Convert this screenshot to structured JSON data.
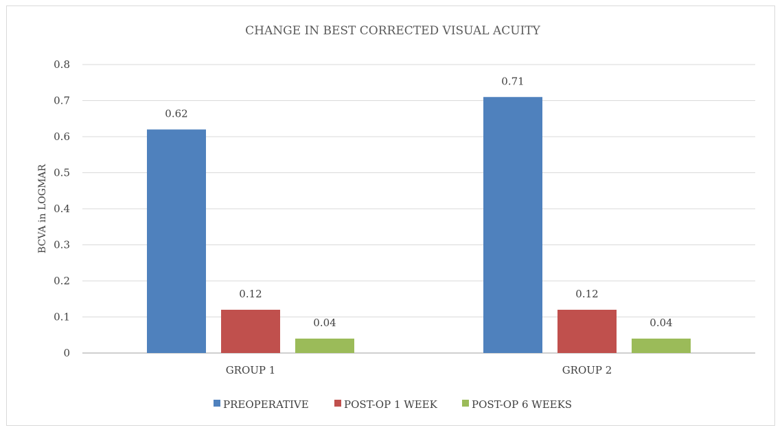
{
  "chart_data": {
    "type": "bar",
    "title": "CHANGE IN BEST CORRECTED VISUAL ACUITY",
    "xlabel": "",
    "ylabel": "BCVA in LOGMAR",
    "ylim": [
      0,
      0.8
    ],
    "yticks": [
      0,
      0.1,
      0.2,
      0.3,
      0.4,
      0.5,
      0.6,
      0.7,
      0.8
    ],
    "ytick_labels": [
      "0",
      "0.1",
      "0.2",
      "0.3",
      "0.4",
      "0.5",
      "0.6",
      "0.7",
      "0.8"
    ],
    "categories": [
      "GROUP 1",
      "GROUP 2"
    ],
    "series": [
      {
        "name": "PREOPERATIVE",
        "values": [
          0.62,
          0.71
        ],
        "labels": [
          "0.62",
          "0.71"
        ],
        "color": "#4f81bd"
      },
      {
        "name": "POST-OP 1 WEEK",
        "values": [
          0.12,
          0.12
        ],
        "labels": [
          "0.12",
          "0.12"
        ],
        "color": "#c0504d"
      },
      {
        "name": "POST-OP 6 WEEKS",
        "values": [
          0.04,
          0.04
        ],
        "labels": [
          "0.04",
          "0.04"
        ],
        "color": "#9bbb59"
      }
    ],
    "grid": true,
    "legend_position": "bottom"
  }
}
